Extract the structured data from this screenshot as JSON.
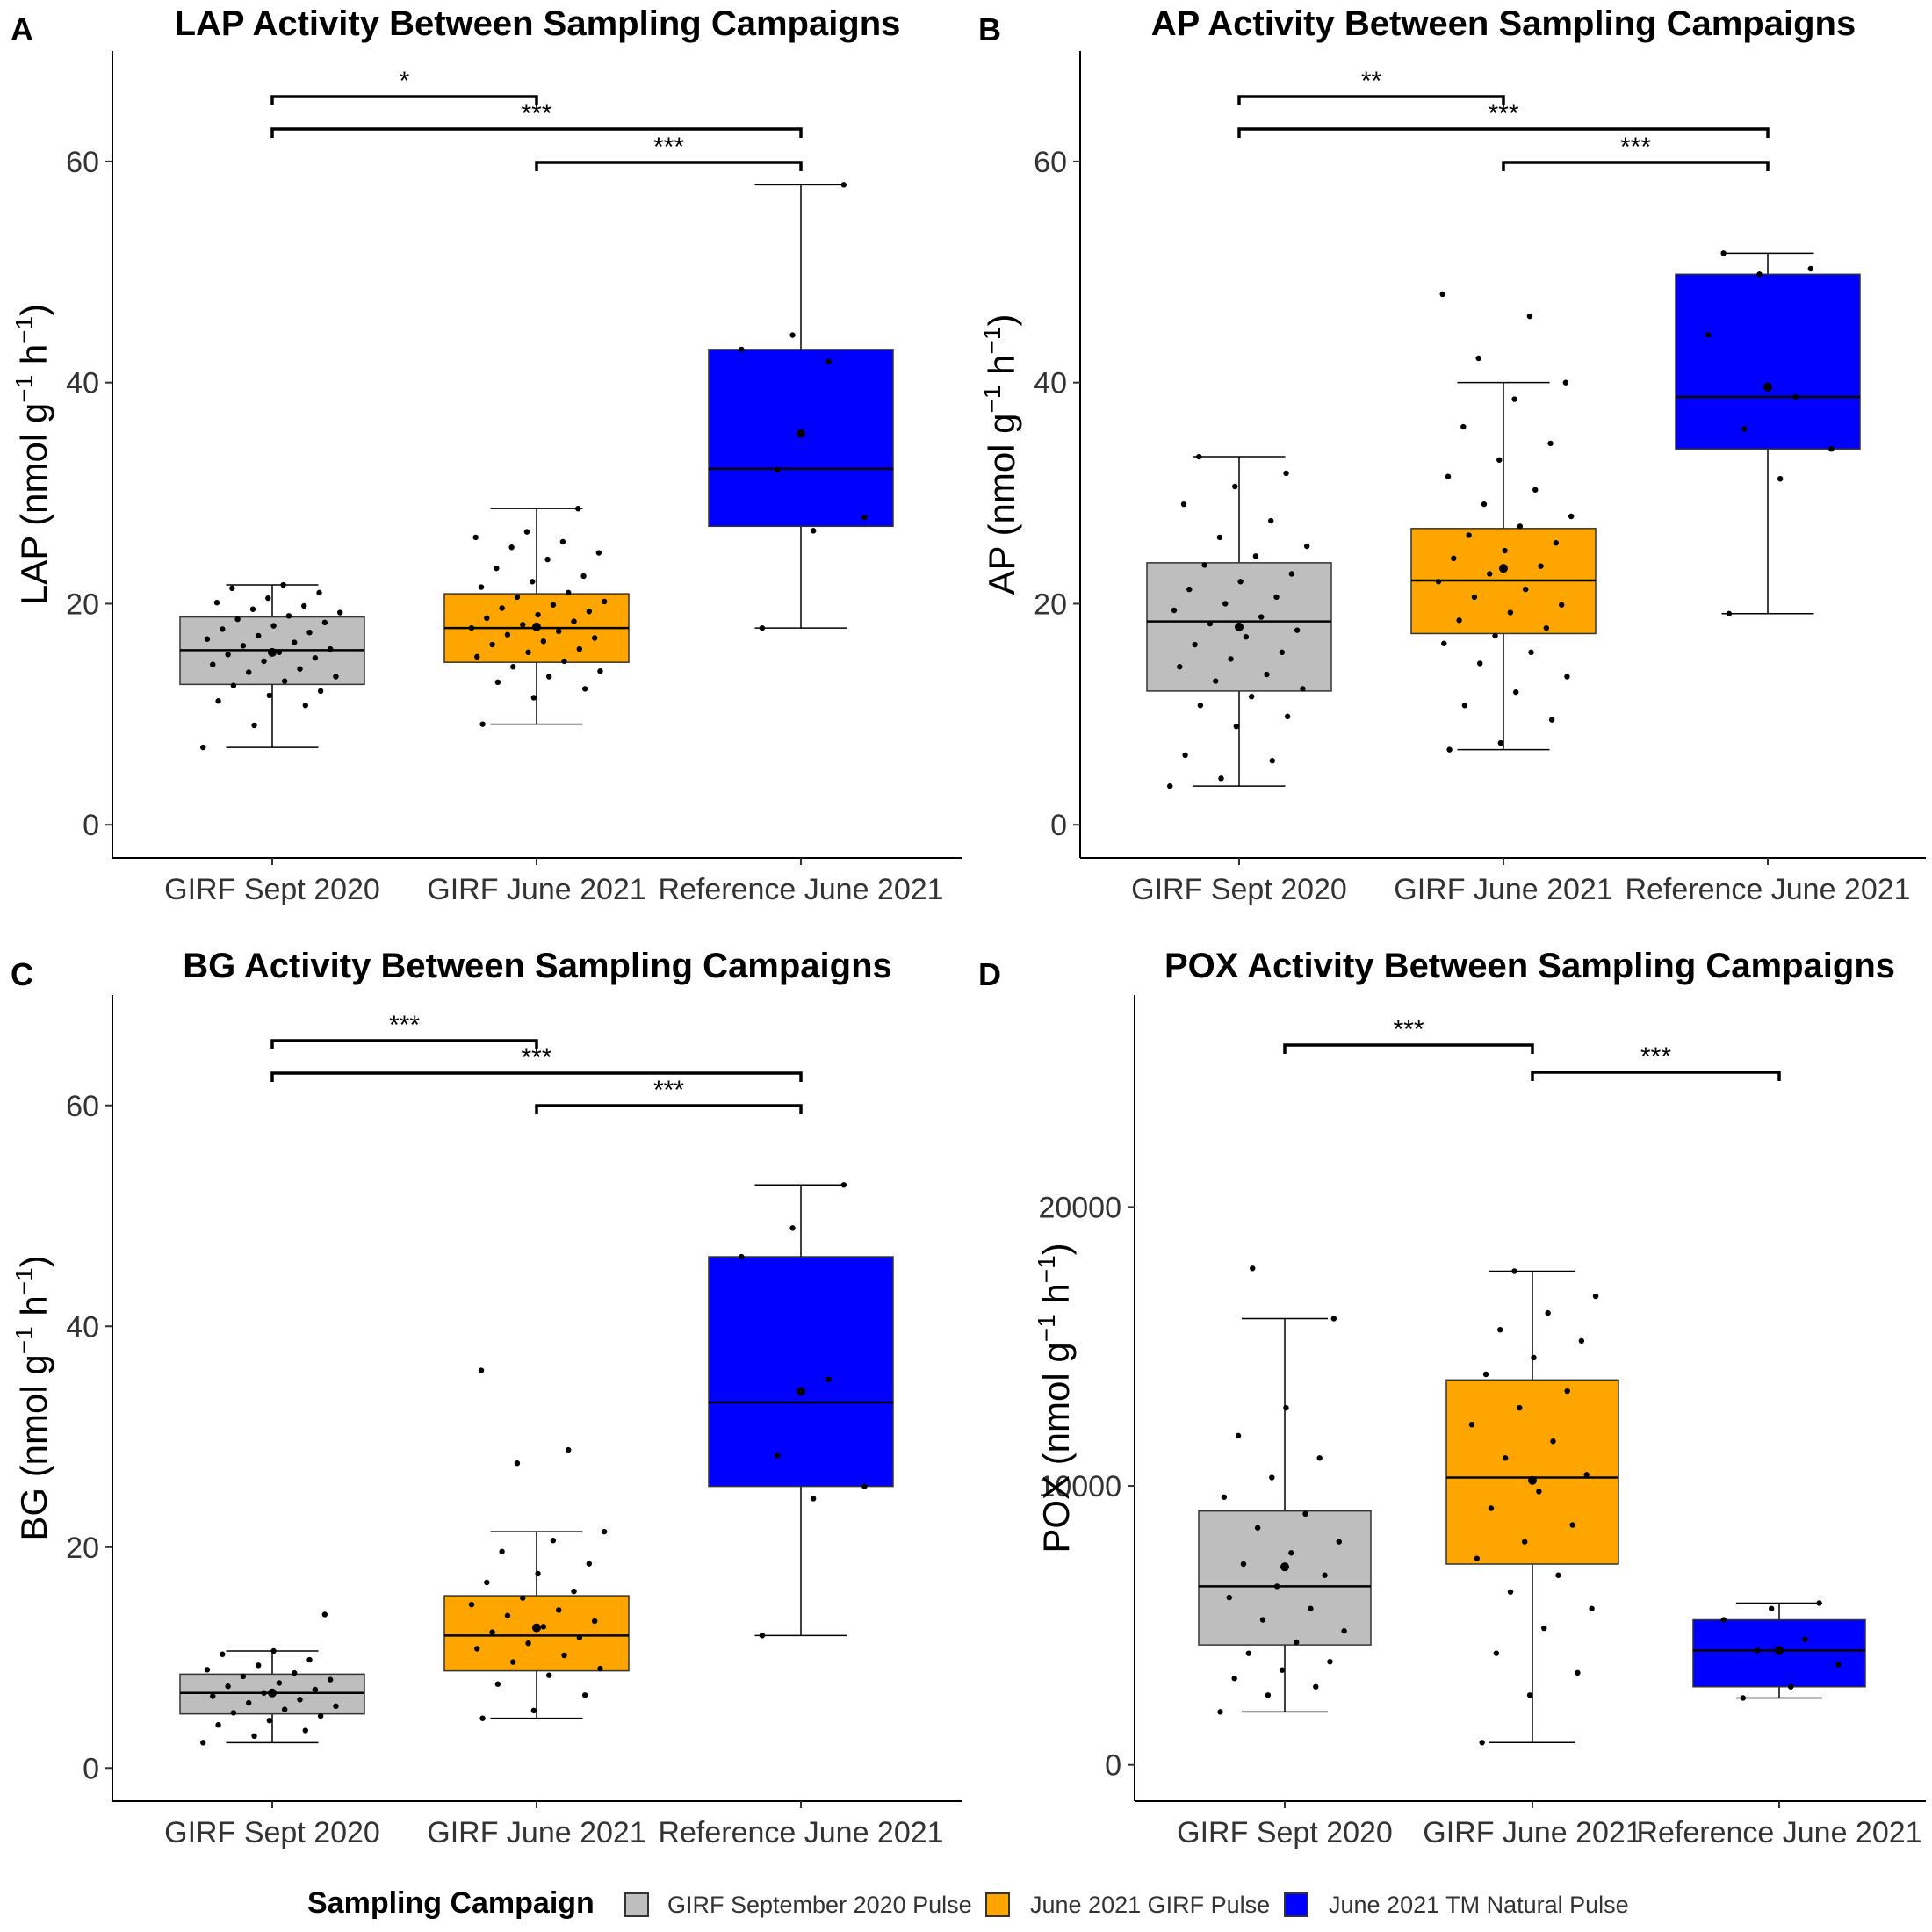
{
  "chart_data": [
    {
      "type": "box",
      "panel_letter": "A",
      "title": "LAP Activity Between Sampling Campaigns",
      "ylabel": "LAP (nmol g⁻¹ h⁻¹)",
      "ylabel_main": "LAP",
      "ylim": [
        -3,
        70
      ],
      "yticks": [
        0,
        20,
        40,
        60
      ],
      "categories": [
        "GIRF Sept 2020",
        "GIRF June 2021",
        "Reference June 2021"
      ],
      "boxes": [
        {
          "min": 7,
          "q1": 12.7,
          "median": 15.8,
          "q3": 18.8,
          "max": 21.7,
          "mean": 15.6,
          "points": [
            7,
            9,
            10.8,
            11.2,
            11.7,
            12.1,
            12.6,
            13,
            13.4,
            13.8,
            14.1,
            14.5,
            14.8,
            15.1,
            15.4,
            15.6,
            15.9,
            16.2,
            16.5,
            16.8,
            17.1,
            17.4,
            17.7,
            18,
            18.3,
            18.6,
            18.9,
            19.2,
            19.5,
            19.8,
            20.1,
            20.5,
            21,
            21.4,
            21.7
          ]
        },
        {
          "min": 9.1,
          "q1": 14.7,
          "median": 17.8,
          "q3": 20.9,
          "max": 28.6,
          "mean": 17.9,
          "points": [
            9.1,
            11.5,
            12.3,
            12.9,
            13.4,
            13.9,
            14.3,
            14.8,
            15.2,
            15.6,
            15.9,
            16.3,
            16.6,
            16.9,
            17.2,
            17.5,
            17.8,
            18.1,
            18.4,
            18.7,
            19,
            19.3,
            19.6,
            19.9,
            20.2,
            20.6,
            21,
            21.5,
            22,
            22.5,
            23.2,
            24,
            24.6,
            25.1,
            25.6,
            26,
            26.5,
            28.6
          ]
        },
        {
          "min": 17.8,
          "q1": 27,
          "median": 32.2,
          "q3": 43,
          "max": 57.9,
          "mean": 35.4,
          "points": [
            17.8,
            26.6,
            27.8,
            32.1,
            41.9,
            43,
            44.3,
            57.9
          ]
        }
      ],
      "comparisons": [
        {
          "from": 0,
          "to": 1,
          "label": "*"
        },
        {
          "from": 0,
          "to": 2,
          "label": "***"
        },
        {
          "from": 1,
          "to": 2,
          "label": "***"
        }
      ]
    },
    {
      "type": "box",
      "panel_letter": "B",
      "title": "AP Activity Between Sampling Campaigns",
      "ylabel": "AP (nmol g⁻¹ h⁻¹)",
      "ylabel_main": "AP",
      "ylim": [
        -3,
        70
      ],
      "yticks": [
        0,
        20,
        40,
        60
      ],
      "categories": [
        "GIRF Sept 2020",
        "GIRF June 2021",
        "Reference June 2021"
      ],
      "boxes": [
        {
          "min": 3.5,
          "q1": 12.1,
          "median": 18.4,
          "q3": 23.7,
          "max": 33.3,
          "mean": 17.9,
          "points": [
            3.5,
            4.2,
            5.8,
            6.3,
            8.9,
            9.8,
            10.8,
            11.6,
            12.3,
            13,
            13.6,
            14.3,
            15,
            15.6,
            16.3,
            17,
            17.6,
            18.2,
            18.8,
            19.4,
            20,
            20.6,
            21.3,
            22,
            22.7,
            23.5,
            24.3,
            25.2,
            26,
            27.5,
            29,
            30.6,
            31.8,
            33.3
          ]
        },
        {
          "min": 6.8,
          "q1": 17.3,
          "median": 22.1,
          "q3": 26.8,
          "max": 40,
          "mean": 23.2,
          "points": [
            6.8,
            7.4,
            9.5,
            10.8,
            12,
            13.4,
            14.6,
            15.6,
            16.4,
            17.1,
            17.8,
            18.5,
            19.2,
            19.9,
            20.6,
            21.3,
            22,
            22.7,
            23.4,
            24.1,
            24.8,
            25.5,
            26.2,
            27,
            27.9,
            29,
            30.3,
            31.5,
            33,
            34.5,
            36,
            38.5,
            40,
            42.2,
            46,
            48
          ]
        },
        {
          "min": 19.1,
          "q1": 34,
          "median": 38.7,
          "q3": 49.8,
          "max": 51.7,
          "mean": 39.6,
          "points": [
            19.1,
            31.3,
            34,
            35.8,
            38.7,
            44.3,
            49.8,
            50.3,
            51.7
          ]
        }
      ],
      "comparisons": [
        {
          "from": 0,
          "to": 1,
          "label": "**"
        },
        {
          "from": 0,
          "to": 2,
          "label": "***"
        },
        {
          "from": 1,
          "to": 2,
          "label": "***"
        }
      ]
    },
    {
      "type": "box",
      "panel_letter": "C",
      "title": "BG Activity Between Sampling Campaigns",
      "ylabel": "BG (nmol g⁻¹ h⁻¹)",
      "ylabel_main": "BG",
      "ylim": [
        -3,
        70
      ],
      "yticks": [
        0,
        20,
        40,
        60
      ],
      "categories": [
        "GIRF Sept 2020",
        "GIRF June 2021",
        "Reference June 2021"
      ],
      "boxes": [
        {
          "min": 2.3,
          "q1": 4.9,
          "median": 6.8,
          "q3": 8.5,
          "max": 10.6,
          "mean": 6.8,
          "points": [
            2.3,
            2.9,
            3.4,
            3.9,
            4.3,
            4.7,
            5,
            5.3,
            5.6,
            5.9,
            6.2,
            6.5,
            6.8,
            7.1,
            7.4,
            7.7,
            8,
            8.3,
            8.6,
            8.9,
            9.3,
            9.8,
            10.3,
            10.6,
            13.9
          ]
        },
        {
          "min": 4.5,
          "q1": 8.8,
          "median": 12,
          "q3": 15.6,
          "max": 21.4,
          "mean": 12.7,
          "points": [
            4.5,
            5.2,
            6.6,
            7.6,
            8.4,
            9,
            9.6,
            10.2,
            10.8,
            11.3,
            11.8,
            12.3,
            12.8,
            13.3,
            13.8,
            14.3,
            14.8,
            15.4,
            16,
            16.8,
            17.6,
            18.5,
            19.6,
            20.6,
            21.4,
            27.6,
            28.8,
            36
          ]
        },
        {
          "min": 12,
          "q1": 25.5,
          "median": 33.1,
          "q3": 46.3,
          "max": 52.8,
          "mean": 34.1,
          "points": [
            12,
            24.4,
            25.5,
            28.3,
            35.2,
            46.3,
            48.9,
            52.8
          ]
        }
      ],
      "comparisons": [
        {
          "from": 0,
          "to": 1,
          "label": "***"
        },
        {
          "from": 0,
          "to": 2,
          "label": "***"
        },
        {
          "from": 1,
          "to": 2,
          "label": "***"
        }
      ]
    },
    {
      "type": "box",
      "panel_letter": "D",
      "title": "POX Activity Between Sampling Campaigns",
      "ylabel": "POX (nmol g⁻¹ h⁻¹)",
      "ylabel_main": "POX",
      "ylim": [
        -1300,
        27600
      ],
      "yticks": [
        0,
        10000,
        20000
      ],
      "categories": [
        "GIRF Sept 2020",
        "GIRF June 2021",
        "Reference June 2021"
      ],
      "boxes": [
        {
          "min": 1900,
          "q1": 4300,
          "median": 6400,
          "q3": 9100,
          "max": 16000,
          "mean": 7100,
          "points": [
            1900,
            2500,
            2800,
            3100,
            3400,
            3700,
            4000,
            4400,
            4800,
            5200,
            5600,
            6000,
            6400,
            6800,
            7200,
            7600,
            8000,
            8500,
            9000,
            9600,
            10300,
            11000,
            11800,
            12800,
            16000,
            17800
          ]
        },
        {
          "min": 800,
          "q1": 7200,
          "median": 10300,
          "q3": 13800,
          "max": 17700,
          "mean": 10200,
          "points": [
            800,
            2500,
            3300,
            4000,
            4900,
            5600,
            6200,
            6800,
            7400,
            8000,
            8600,
            9200,
            9800,
            10400,
            11000,
            11600,
            12200,
            12800,
            13400,
            14000,
            14600,
            15200,
            15600,
            16200,
            16800,
            17700
          ]
        },
        {
          "min": 2400,
          "q1": 2800,
          "median": 4100,
          "q3": 5200,
          "max": 5800,
          "mean": 4100,
          "points": [
            2400,
            2800,
            3600,
            4100,
            4500,
            5200,
            5600,
            5800
          ]
        }
      ],
      "comparisons": [
        {
          "from": 0,
          "to": 1,
          "label": "***"
        },
        {
          "from": 1,
          "to": 2,
          "label": "***"
        }
      ]
    }
  ],
  "legend": {
    "title": "Sampling Campaign",
    "entries": [
      {
        "label": "GIRF September 2020 Pulse",
        "color": "#bebebe"
      },
      {
        "label": "June 2021 GIRF Pulse",
        "color": "#ffa500"
      },
      {
        "label": "June 2021 TM Natural Pulse",
        "color": "#0000ff"
      }
    ],
    "position": "bottom"
  }
}
